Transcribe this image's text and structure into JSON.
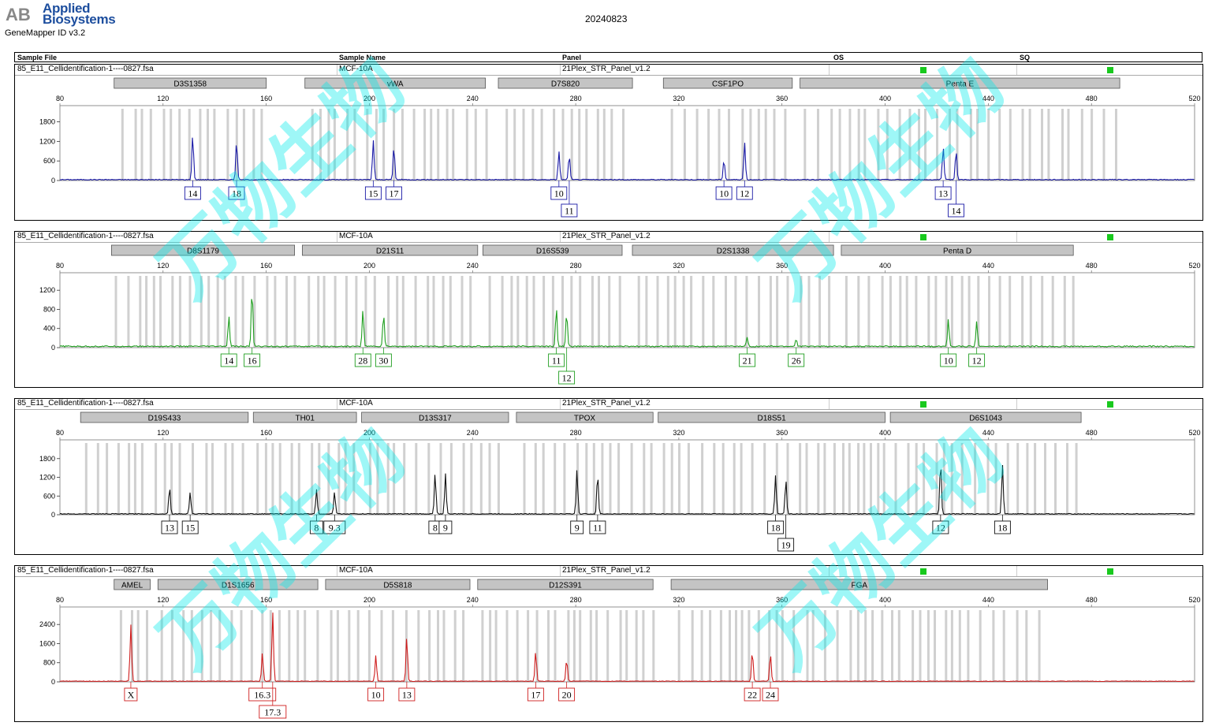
{
  "header": {
    "logo_mark": "AB",
    "company_line1": "Applied",
    "company_line2": "Biosystems",
    "app_version": "GeneMapper ID v3.2",
    "date": "20240823"
  },
  "columns": {
    "sample_file": "Sample File",
    "sample_name": "Sample Name",
    "panel": "Panel",
    "os": "OS",
    "sq": "SQ"
  },
  "x_axis_ticks": [
    80,
    120,
    160,
    200,
    240,
    280,
    320,
    360,
    400,
    440,
    480,
    520
  ],
  "panels": [
    {
      "sample_file": "85_E11_Cellidentification-1----0827.fsa",
      "sample_name": "MCF-10A",
      "panel": "21Plex_STR_Panel_v1.2",
      "color": "#1a1aa6",
      "yticks": [
        0,
        600,
        1200,
        1800
      ],
      "ymax": 2200,
      "markers": [
        {
          "name": "D3S1358",
          "start": 101,
          "end": 160
        },
        {
          "name": "vWA",
          "start": 175,
          "end": 245
        },
        {
          "name": "D7S820",
          "start": 250,
          "end": 302
        },
        {
          "name": "CSF1PO",
          "start": 314,
          "end": 364
        },
        {
          "name": "Penta E",
          "start": 367,
          "end": 491
        }
      ],
      "peaks": [
        {
          "x": 131.5,
          "h": 1400,
          "allele": "14",
          "row": 0
        },
        {
          "x": 148.5,
          "h": 1200,
          "allele": "18",
          "row": 0
        },
        {
          "x": 201.5,
          "h": 1220,
          "allele": "15",
          "row": 0
        },
        {
          "x": 209.5,
          "h": 1020,
          "allele": "17",
          "row": 0
        },
        {
          "x": 273.5,
          "h": 880,
          "allele": "10",
          "row": 0
        },
        {
          "x": 277.5,
          "h": 760,
          "allele": "11",
          "row": 1
        },
        {
          "x": 337.5,
          "h": 620,
          "allele": "10",
          "row": 0
        },
        {
          "x": 345.5,
          "h": 1150,
          "allele": "12",
          "row": 0
        },
        {
          "x": 422.5,
          "h": 1000,
          "allele": "13",
          "row": 0
        },
        {
          "x": 427.5,
          "h": 920,
          "allele": "14",
          "row": 1
        }
      ]
    },
    {
      "sample_file": "85_E11_Cellidentification-1----0827.fsa",
      "sample_name": "MCF-10A",
      "panel": "21Plex_STR_Panel_v1.2",
      "color": "#1f9e1f",
      "yticks": [
        0,
        400,
        800,
        1200
      ],
      "ymax": 1500,
      "markers": [
        {
          "name": "D8S1179",
          "start": 100,
          "end": 171
        },
        {
          "name": "D21S11",
          "start": 174,
          "end": 242
        },
        {
          "name": "D16S539",
          "start": 244,
          "end": 298
        },
        {
          "name": "D2S1338",
          "start": 302,
          "end": 380
        },
        {
          "name": "Penta D",
          "start": 383,
          "end": 473
        }
      ],
      "peaks": [
        {
          "x": 145.5,
          "h": 630,
          "allele": "14",
          "row": 0
        },
        {
          "x": 154.5,
          "h": 1210,
          "allele": "16",
          "row": 0
        },
        {
          "x": 197.5,
          "h": 760,
          "allele": "28",
          "row": 0
        },
        {
          "x": 205.5,
          "h": 690,
          "allele": "30",
          "row": 0
        },
        {
          "x": 272.5,
          "h": 810,
          "allele": "11",
          "row": 0
        },
        {
          "x": 276.5,
          "h": 720,
          "allele": "12",
          "row": 1
        },
        {
          "x": 346.5,
          "h": 200,
          "allele": "21",
          "row": 0
        },
        {
          "x": 365.5,
          "h": 150,
          "allele": "26",
          "row": 0
        },
        {
          "x": 424.5,
          "h": 580,
          "allele": "10",
          "row": 0
        },
        {
          "x": 435.5,
          "h": 520,
          "allele": "12",
          "row": 0
        }
      ]
    },
    {
      "sample_file": "85_E11_Cellidentification-1----0827.fsa",
      "sample_name": "MCF-10A",
      "panel": "21Plex_STR_Panel_v1.2",
      "color": "#111111",
      "yticks": [
        0,
        600,
        1200,
        1800
      ],
      "ymax": 2300,
      "markers": [
        {
          "name": "D19S433",
          "start": 88,
          "end": 153
        },
        {
          "name": "TH01",
          "start": 155,
          "end": 195
        },
        {
          "name": "D13S317",
          "start": 197,
          "end": 254
        },
        {
          "name": "TPOX",
          "start": 257,
          "end": 310
        },
        {
          "name": "D18S51",
          "start": 312,
          "end": 400
        },
        {
          "name": "D6S1043",
          "start": 402,
          "end": 476
        }
      ],
      "peaks": [
        {
          "x": 122.5,
          "h": 880,
          "allele": "13",
          "row": 0
        },
        {
          "x": 130.5,
          "h": 700,
          "allele": "15",
          "row": 0
        },
        {
          "x": 179.5,
          "h": 790,
          "allele": "8",
          "row": 0
        },
        {
          "x": 186.5,
          "h": 720,
          "allele": "9.3",
          "row": 0
        },
        {
          "x": 225.5,
          "h": 1320,
          "allele": "8",
          "row": 0
        },
        {
          "x": 229.5,
          "h": 1300,
          "allele": "9",
          "row": 0
        },
        {
          "x": 280.5,
          "h": 1430,
          "allele": "9",
          "row": 0
        },
        {
          "x": 288.5,
          "h": 1300,
          "allele": "11",
          "row": 0
        },
        {
          "x": 357.5,
          "h": 1240,
          "allele": "18",
          "row": 0
        },
        {
          "x": 361.5,
          "h": 1100,
          "allele": "19",
          "row": 1
        },
        {
          "x": 421.5,
          "h": 1720,
          "allele": "12",
          "row": 0
        },
        {
          "x": 445.5,
          "h": 1570,
          "allele": "18",
          "row": 0
        }
      ]
    },
    {
      "sample_file": "85_E11_Cellidentification-1----0827.fsa",
      "sample_name": "MCF-10A",
      "panel": "21Plex_STR_Panel_v1.2",
      "color": "#cf1d1d",
      "yticks": [
        0,
        800,
        1600,
        2400
      ],
      "ymax": 3000,
      "markers": [
        {
          "name": "AMEL",
          "start": 101,
          "end": 115
        },
        {
          "name": "D1S1656",
          "start": 118,
          "end": 180
        },
        {
          "name": "D5S818",
          "start": 183,
          "end": 239
        },
        {
          "name": "D12S391",
          "start": 242,
          "end": 310
        },
        {
          "name": "FGA",
          "start": 317,
          "end": 463
        }
      ],
      "peaks": [
        {
          "x": 107.5,
          "h": 2380,
          "allele": "X",
          "row": 0
        },
        {
          "x": 158.5,
          "h": 1180,
          "allele": "16.3",
          "row": 0
        },
        {
          "x": 162.5,
          "h": 2920,
          "allele": "17.3",
          "row": 1
        },
        {
          "x": 202.5,
          "h": 1080,
          "allele": "10",
          "row": 0
        },
        {
          "x": 214.5,
          "h": 1880,
          "allele": "13",
          "row": 0
        },
        {
          "x": 264.5,
          "h": 1250,
          "allele": "17",
          "row": 0
        },
        {
          "x": 276.5,
          "h": 920,
          "allele": "20",
          "row": 0
        },
        {
          "x": 348.5,
          "h": 1270,
          "allele": "22",
          "row": 0
        },
        {
          "x": 355.5,
          "h": 1160,
          "allele": "24",
          "row": 0
        }
      ]
    }
  ],
  "watermark": "万物生物",
  "chart_data": [
    {
      "type": "line",
      "title": "",
      "series": [
        {
          "name": "Blue",
          "x": [
            131.5,
            148.5,
            201.5,
            209.5,
            273.5,
            277.5,
            337.5,
            345.5,
            422.5,
            427.5
          ],
          "values": [
            1400,
            1200,
            1220,
            1020,
            880,
            760,
            620,
            1150,
            1000,
            920
          ]
        }
      ],
      "xlim": [
        80,
        520
      ],
      "ylim": [
        0,
        2200
      ]
    },
    {
      "type": "line",
      "title": "",
      "series": [
        {
          "name": "Green",
          "x": [
            145.5,
            154.5,
            197.5,
            205.5,
            272.5,
            276.5,
            346.5,
            365.5,
            424.5,
            435.5
          ],
          "values": [
            630,
            1210,
            760,
            690,
            810,
            720,
            200,
            150,
            580,
            520
          ]
        }
      ],
      "xlim": [
        80,
        520
      ],
      "ylim": [
        0,
        1500
      ]
    },
    {
      "type": "line",
      "title": "",
      "series": [
        {
          "name": "Black",
          "x": [
            122.5,
            130.5,
            179.5,
            186.5,
            225.5,
            229.5,
            280.5,
            288.5,
            357.5,
            361.5,
            421.5,
            445.5
          ],
          "values": [
            880,
            700,
            790,
            720,
            1320,
            1300,
            1430,
            1300,
            1240,
            1100,
            1720,
            1570
          ]
        }
      ],
      "xlim": [
        80,
        520
      ],
      "ylim": [
        0,
        2300
      ]
    },
    {
      "type": "line",
      "title": "",
      "series": [
        {
          "name": "Red",
          "x": [
            107.5,
            158.5,
            162.5,
            202.5,
            214.5,
            264.5,
            276.5,
            348.5,
            355.5
          ],
          "values": [
            2380,
            1180,
            2920,
            1080,
            1880,
            1250,
            920,
            1270,
            1160
          ]
        }
      ],
      "xlim": [
        80,
        520
      ],
      "ylim": [
        0,
        3000
      ]
    }
  ]
}
